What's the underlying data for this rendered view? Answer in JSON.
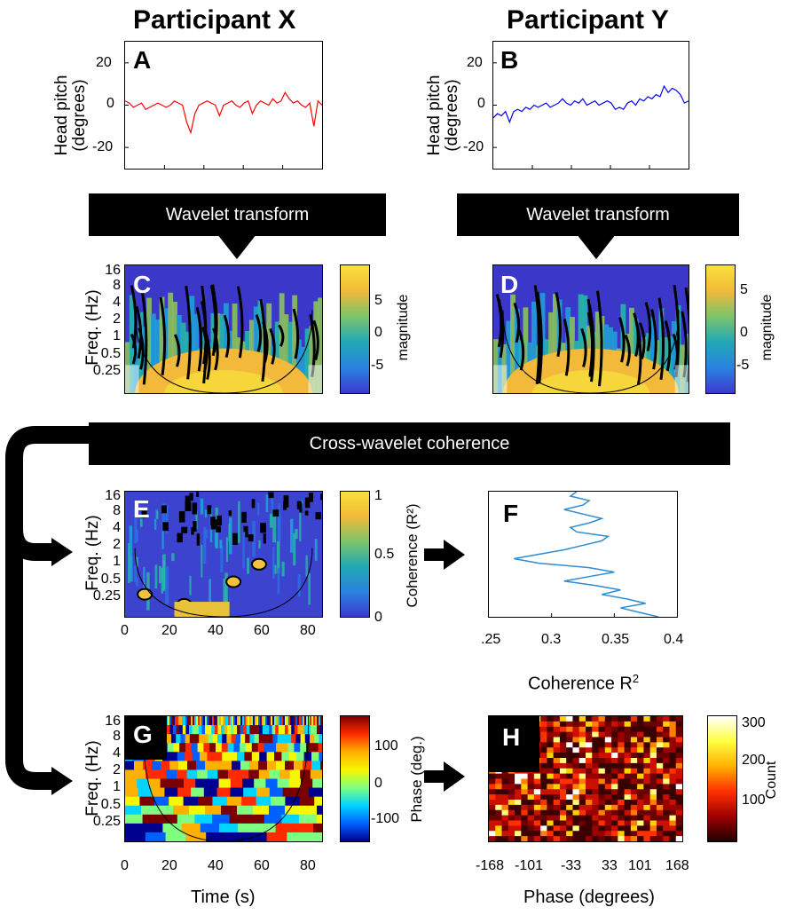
{
  "titles": {
    "left": "Participant X",
    "right": "Participant Y"
  },
  "panels": {
    "A": "A",
    "B": "B",
    "C": "C",
    "D": "D",
    "E": "E",
    "F": "F",
    "G": "G",
    "H": "H"
  },
  "labels": {
    "head_pitch_1": "Head pitch",
    "head_pitch_2": "(degrees)",
    "freq": "Freq. (Hz)",
    "magnitude": "magnitude",
    "coherence_cb": "Coherence (R²)",
    "phase_cb": "Phase (deg.)",
    "count": "Count",
    "coherence_x": "Coherence R",
    "coherence_x_sup": "2",
    "time_x": "Time (s)",
    "phase_x": "Phase (degrees)"
  },
  "banners": {
    "wavelet_left": "Wavelet transform",
    "wavelet_right": "Wavelet transform",
    "cross": "Cross-wavelet coherence"
  },
  "ticks": {
    "pitch_y": [
      "20",
      "0",
      "-20"
    ],
    "freq_y": [
      "16",
      "8",
      "4",
      "2",
      "1",
      "0.5",
      "0.25"
    ],
    "mag_cb": [
      "5",
      "0",
      "-5"
    ],
    "coh_cb": [
      "1",
      "0.5",
      "0"
    ],
    "phase_cb": [
      "100",
      "0",
      "-100"
    ],
    "count_cb": [
      "300",
      "200",
      "100"
    ],
    "time_x": [
      "0",
      "20",
      "40",
      "60",
      "80"
    ],
    "coh_x": [
      ".25",
      "0.3",
      "0.35",
      "0.4"
    ],
    "phase_x": [
      "-168",
      "-101",
      "-33",
      "33",
      "101",
      "168"
    ]
  },
  "colors": {
    "pitch_x": "#ff0000",
    "pitch_y": "#0000ff",
    "coherence_line": "#2f8ccf"
  },
  "chart_data": [
    {
      "type": "line",
      "panel": "A",
      "ylabel": "Head pitch (degrees)",
      "ylim": [
        -30,
        30
      ],
      "y": [
        2,
        1,
        -1,
        0,
        1,
        -2,
        -1,
        0,
        1,
        0,
        -1,
        0,
        2,
        1,
        0,
        -8,
        -13,
        -4,
        0,
        1,
        2,
        1,
        0,
        -5,
        0,
        1,
        2,
        0,
        -1,
        1,
        2,
        -4,
        0,
        2,
        1,
        0,
        3,
        1,
        2,
        6,
        3,
        1,
        2,
        0,
        -1,
        1,
        -10,
        2,
        0
      ]
    },
    {
      "type": "line",
      "panel": "B",
      "ylabel": "Head pitch (degrees)",
      "ylim": [
        -30,
        30
      ],
      "y": [
        -6,
        -4,
        -5,
        -3,
        -8,
        -3,
        -2,
        -3,
        -1,
        -2,
        0,
        -1,
        0,
        1,
        -1,
        0,
        1,
        3,
        1,
        0,
        2,
        1,
        3,
        0,
        1,
        2,
        0,
        1,
        2,
        1,
        -2,
        -1,
        -2,
        1,
        2,
        0,
        3,
        2,
        4,
        3,
        5,
        4,
        9,
        6,
        8,
        7,
        5,
        1,
        2
      ]
    },
    {
      "type": "heatmap",
      "panel": "C",
      "ylabel": "Freq. (Hz)",
      "colorbar": "magnitude",
      "clim": [
        -8,
        8
      ]
    },
    {
      "type": "heatmap",
      "panel": "D",
      "ylabel": "Freq. (Hz)",
      "colorbar": "magnitude",
      "clim": [
        -8,
        8
      ]
    },
    {
      "type": "heatmap",
      "panel": "E",
      "ylabel": "Freq. (Hz)",
      "colorbar": "Coherence (R²)",
      "clim": [
        0,
        1
      ],
      "xlim": [
        0,
        85
      ]
    },
    {
      "type": "line",
      "panel": "F",
      "xlabel": "Coherence R2",
      "xlim": [
        0.25,
        0.4
      ],
      "x": [
        0.32,
        0.315,
        0.33,
        0.325,
        0.31,
        0.325,
        0.34,
        0.33,
        0.315,
        0.32,
        0.345,
        0.34,
        0.325,
        0.31,
        0.29,
        0.27,
        0.29,
        0.33,
        0.35,
        0.33,
        0.31,
        0.335,
        0.355,
        0.34,
        0.36,
        0.375,
        0.355,
        0.37,
        0.385
      ]
    },
    {
      "type": "heatmap",
      "panel": "G",
      "ylabel": "Freq. (Hz)",
      "xlabel": "Time (s)",
      "colorbar": "Phase (deg.)",
      "clim": [
        -180,
        180
      ],
      "xlim": [
        0,
        85
      ]
    },
    {
      "type": "heatmap",
      "panel": "H",
      "xlabel": "Phase (degrees)",
      "colorbar": "Count",
      "clim": [
        0,
        300
      ]
    }
  ]
}
